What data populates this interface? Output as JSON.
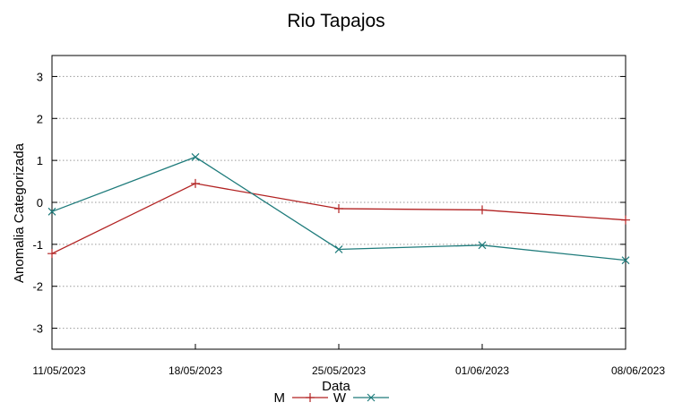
{
  "chart_data": {
    "type": "line",
    "title": "Rio Tapajos",
    "xlabel": "Data",
    "ylabel": "Anomalia Categorizada",
    "categories": [
      "11/05/2023",
      "18/05/2023",
      "25/05/2023",
      "01/06/2023",
      "08/06/2023"
    ],
    "yticks": [
      "-3",
      "-2",
      "-1",
      "0",
      "1",
      "2",
      "3"
    ],
    "ylim": [
      -3.5,
      3.5
    ],
    "grid": true,
    "legend_position": "bottom-center",
    "series": [
      {
        "name": "M",
        "color": "#b22222",
        "marker": "plus",
        "values": [
          -1.22,
          0.45,
          -0.15,
          -0.18,
          -0.42
        ]
      },
      {
        "name": "W",
        "color": "#1e7b7b",
        "marker": "cross",
        "values": [
          -0.22,
          1.08,
          -1.12,
          -1.02,
          -1.38
        ]
      }
    ]
  }
}
